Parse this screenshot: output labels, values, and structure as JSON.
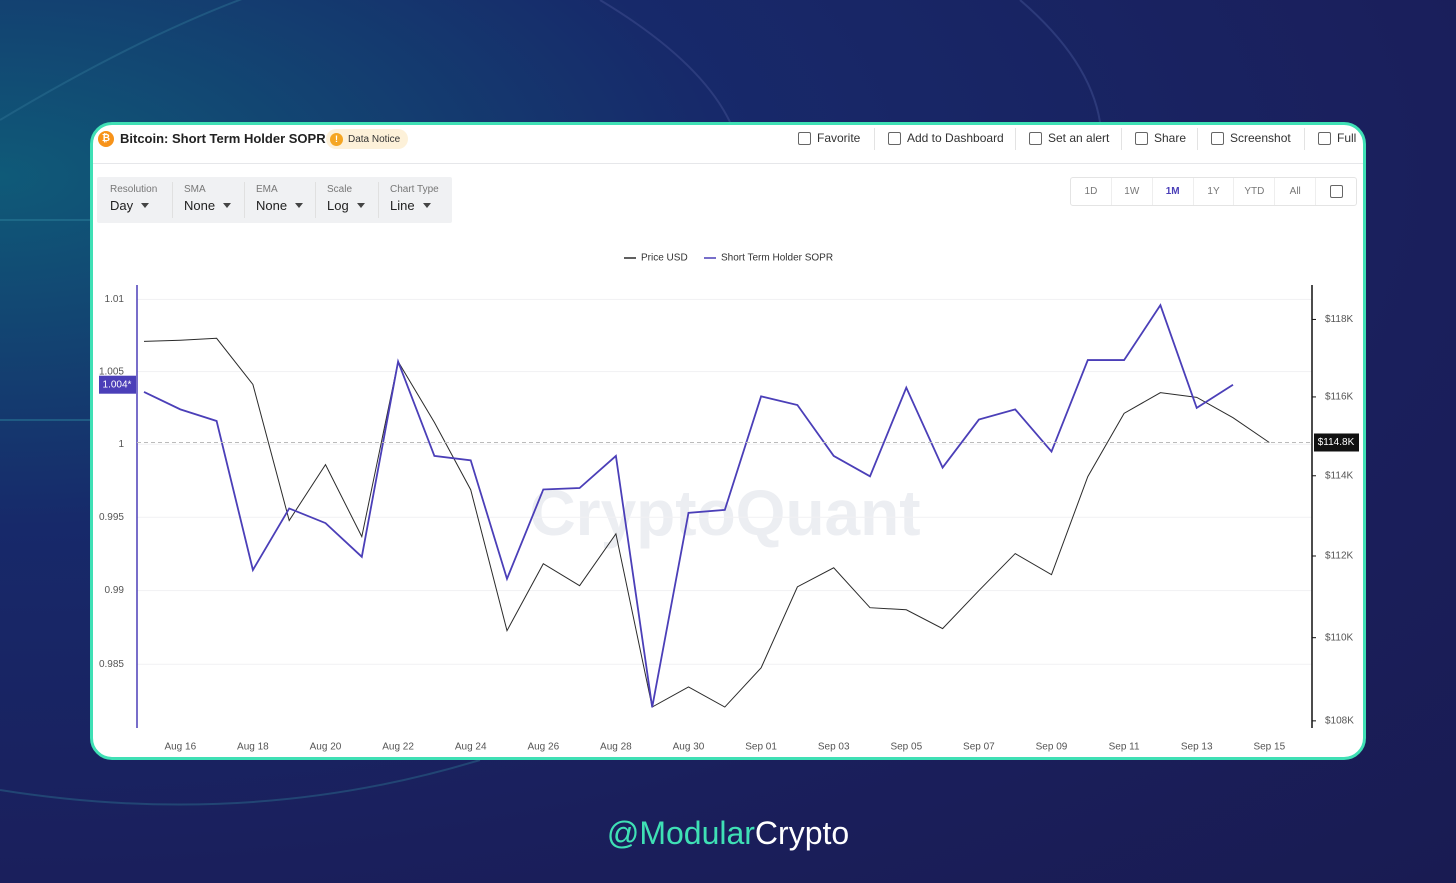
{
  "header": {
    "title": "Bitcoin: Short Term Holder SOPR",
    "notice": "Data Notice",
    "notice_icon": "!",
    "actions": [
      "Favorite",
      "Add to Dashboard",
      "Set an alert",
      "Share",
      "Screenshot",
      "Full"
    ]
  },
  "controls": [
    {
      "label": "Resolution",
      "value": "Day"
    },
    {
      "label": "SMA",
      "value": "None"
    },
    {
      "label": "EMA",
      "value": "None"
    },
    {
      "label": "Scale",
      "value": "Log"
    },
    {
      "label": "Chart Type",
      "value": "Line"
    }
  ],
  "ranges": {
    "options": [
      "1D",
      "1W",
      "1M",
      "1Y",
      "YTD",
      "All"
    ],
    "active": "1M"
  },
  "footer": {
    "handle_a": "@Modular",
    "handle_b": "Crypto"
  },
  "chart_data": {
    "type": "line",
    "watermark": "CryptoQuant",
    "log_scale": true,
    "grid": true,
    "categories": [
      null,
      "Aug 16",
      null,
      "Aug 18",
      null,
      "Aug 20",
      null,
      "Aug 22",
      null,
      "Aug 24",
      null,
      "Aug 26",
      null,
      "Aug 28",
      null,
      "Aug 30",
      null,
      "Sep 01",
      null,
      "Sep 03",
      null,
      "Sep 05",
      null,
      "Sep 07",
      null,
      "Sep 09",
      null,
      "Sep 11",
      null,
      "Sep 13",
      null,
      "Sep 15"
    ],
    "ylim": [
      0.9807,
      1.011
    ],
    "yticks": [
      0.985,
      0.99,
      0.995,
      1,
      1.005,
      1.01
    ],
    "y2lim": [
      107830,
      118900
    ],
    "y2ticks": [
      {
        "value": 108000,
        "label": "$108K"
      },
      {
        "value": 110000,
        "label": "$110K"
      },
      {
        "value": 112000,
        "label": "$112K"
      },
      {
        "value": 114000,
        "label": "$114K"
      },
      {
        "value": 116000,
        "label": "$116K"
      },
      {
        "value": 118000,
        "label": "$118K"
      }
    ],
    "series": [
      {
        "name": "Price USD",
        "color": "#2b2b2b",
        "axis": "y2",
        "current_label": "$114.8K",
        "values": [
          117430,
          117460,
          117510,
          116320,
          112880,
          114280,
          112480,
          116910,
          115350,
          113650,
          110170,
          111810,
          111270,
          112550,
          108330,
          108810,
          108330,
          109270,
          111240,
          111710,
          110730,
          110680,
          110220,
          111150,
          112060,
          111540,
          113980,
          115580,
          116110,
          115990,
          115470,
          114840
        ]
      },
      {
        "name": "Short Term Holder SOPR",
        "color": "#4b3fb8",
        "axis": "y",
        "current_label": "1.004*",
        "values": [
          1.0036,
          1.0024,
          1.0016,
          0.9914,
          0.9956,
          0.9946,
          0.9923,
          1.0057,
          0.9992,
          0.9989,
          0.9908,
          0.9969,
          0.997,
          0.9992,
          0.9821,
          0.9953,
          0.9955,
          1.0033,
          1.0027,
          0.9992,
          0.9978,
          1.0039,
          0.9984,
          1.0017,
          1.0024,
          0.9995,
          1.0058,
          1.0058,
          1.0096,
          1.0025,
          1.0041,
          null
        ]
      }
    ]
  }
}
